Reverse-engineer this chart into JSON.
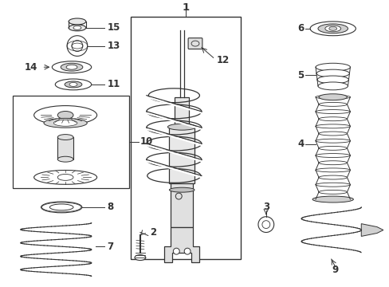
{
  "bg_color": "#ffffff",
  "line_color": "#333333",
  "font_size": 8.5,
  "label_font_size": 9.5
}
